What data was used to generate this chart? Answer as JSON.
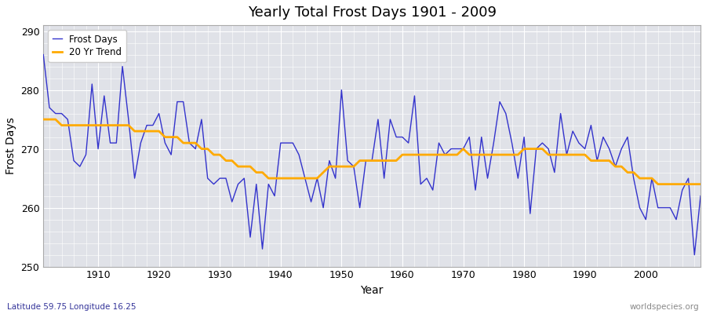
{
  "title": "Yearly Total Frost Days 1901 - 2009",
  "xlabel": "Year",
  "ylabel": "Frost Days",
  "bottom_left_label": "Latitude 59.75 Longitude 16.25",
  "bottom_right_label": "worldspecies.org",
  "ylim": [
    250,
    291
  ],
  "yticks": [
    250,
    260,
    270,
    280,
    290
  ],
  "line_color": "#3333cc",
  "trend_color": "#ffaa00",
  "plot_bg_color": "#e0e2e8",
  "outer_bg_color": "#ffffff",
  "grid_color": "#ffffff",
  "years": [
    1901,
    1902,
    1903,
    1904,
    1905,
    1906,
    1907,
    1908,
    1909,
    1910,
    1911,
    1912,
    1913,
    1914,
    1915,
    1916,
    1917,
    1918,
    1919,
    1920,
    1921,
    1922,
    1923,
    1924,
    1925,
    1926,
    1927,
    1928,
    1929,
    1930,
    1931,
    1932,
    1933,
    1934,
    1935,
    1936,
    1937,
    1938,
    1939,
    1940,
    1941,
    1942,
    1943,
    1944,
    1945,
    1946,
    1947,
    1948,
    1949,
    1950,
    1951,
    1952,
    1953,
    1954,
    1955,
    1956,
    1957,
    1958,
    1959,
    1960,
    1961,
    1962,
    1963,
    1964,
    1965,
    1966,
    1967,
    1968,
    1969,
    1970,
    1971,
    1972,
    1973,
    1974,
    1975,
    1976,
    1977,
    1978,
    1979,
    1980,
    1981,
    1982,
    1983,
    1984,
    1985,
    1986,
    1987,
    1988,
    1989,
    1990,
    1991,
    1992,
    1993,
    1994,
    1995,
    1996,
    1997,
    1998,
    1999,
    2000,
    2001,
    2002,
    2003,
    2004,
    2005,
    2006,
    2007,
    2008,
    2009
  ],
  "frost_days": [
    286,
    277,
    276,
    276,
    275,
    268,
    267,
    269,
    281,
    270,
    279,
    271,
    271,
    284,
    275,
    265,
    271,
    274,
    274,
    276,
    271,
    269,
    278,
    278,
    271,
    270,
    275,
    265,
    264,
    265,
    265,
    261,
    264,
    265,
    255,
    264,
    253,
    264,
    262,
    271,
    271,
    271,
    269,
    265,
    261,
    265,
    260,
    268,
    265,
    280,
    268,
    267,
    260,
    268,
    268,
    275,
    265,
    275,
    272,
    272,
    271,
    279,
    264,
    265,
    263,
    271,
    269,
    270,
    270,
    270,
    272,
    263,
    272,
    265,
    271,
    278,
    276,
    271,
    265,
    272,
    259,
    270,
    271,
    270,
    266,
    276,
    269,
    273,
    271,
    270,
    274,
    268,
    272,
    270,
    267,
    270,
    272,
    265,
    260,
    258,
    265,
    260,
    260,
    260,
    258,
    263,
    265,
    252,
    262
  ],
  "trend_values": [
    275,
    275,
    275,
    274,
    274,
    274,
    274,
    274,
    274,
    274,
    274,
    274,
    274,
    274,
    274,
    273,
    273,
    273,
    273,
    273,
    272,
    272,
    272,
    271,
    271,
    271,
    270,
    270,
    269,
    269,
    268,
    268,
    267,
    267,
    267,
    266,
    266,
    265,
    265,
    265,
    265,
    265,
    265,
    265,
    265,
    265,
    266,
    267,
    267,
    267,
    267,
    267,
    268,
    268,
    268,
    268,
    268,
    268,
    268,
    269,
    269,
    269,
    269,
    269,
    269,
    269,
    269,
    269,
    269,
    270,
    269,
    269,
    269,
    269,
    269,
    269,
    269,
    269,
    269,
    270,
    270,
    270,
    270,
    269,
    269,
    269,
    269,
    269,
    269,
    269,
    268,
    268,
    268,
    268,
    267,
    267,
    266,
    266,
    265,
    265,
    265,
    264,
    264,
    264,
    264,
    264,
    264,
    264,
    264
  ]
}
